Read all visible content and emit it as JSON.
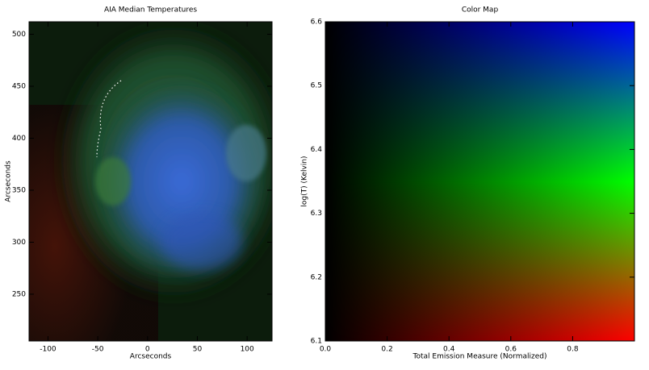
{
  "chart_data": [
    {
      "type": "image",
      "title": "AIA Median Temperatures",
      "x_label": "Arcseconds",
      "y_label": "Arcseconds",
      "xlim": [
        -119,
        125
      ],
      "ylim": [
        205,
        512
      ],
      "xticks": [
        -100,
        -50,
        0,
        50,
        100
      ],
      "yticks": [
        250,
        300,
        350,
        400,
        450,
        500
      ]
    },
    {
      "type": "colormap",
      "title": "Color Map",
      "x_label": "Total Emission Measure (Normalized)",
      "y_label": "log(T) (Kelvin)",
      "xlim": [
        0,
        1
      ],
      "ylim": [
        6.1,
        6.6
      ],
      "xticks": [
        {
          "value": 0,
          "label": "0.0"
        },
        0.2,
        0.4,
        0.6,
        0.8
      ],
      "yticks": [
        6.1,
        6.2,
        6.3,
        6.4,
        6.5,
        6.6
      ],
      "colors": [
        "#ff0000",
        "#00ff00",
        "#0000ff"
      ]
    }
  ]
}
